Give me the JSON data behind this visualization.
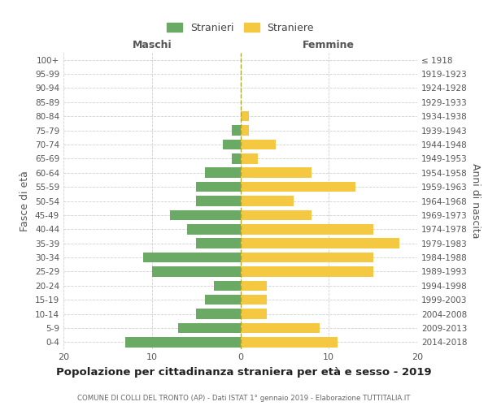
{
  "age_groups": [
    "0-4",
    "5-9",
    "10-14",
    "15-19",
    "20-24",
    "25-29",
    "30-34",
    "35-39",
    "40-44",
    "45-49",
    "50-54",
    "55-59",
    "60-64",
    "65-69",
    "70-74",
    "75-79",
    "80-84",
    "85-89",
    "90-94",
    "95-99",
    "100+"
  ],
  "birth_years": [
    "2014-2018",
    "2009-2013",
    "2004-2008",
    "1999-2003",
    "1994-1998",
    "1989-1993",
    "1984-1988",
    "1979-1983",
    "1974-1978",
    "1969-1973",
    "1964-1968",
    "1959-1963",
    "1954-1958",
    "1949-1953",
    "1944-1948",
    "1939-1943",
    "1934-1938",
    "1929-1933",
    "1924-1928",
    "1919-1923",
    "≤ 1918"
  ],
  "males": [
    13,
    7,
    5,
    4,
    3,
    10,
    11,
    5,
    6,
    8,
    5,
    5,
    4,
    1,
    2,
    1,
    0,
    0,
    0,
    0,
    0
  ],
  "females": [
    11,
    9,
    3,
    3,
    3,
    15,
    15,
    18,
    15,
    8,
    6,
    13,
    8,
    2,
    4,
    1,
    1,
    0,
    0,
    0,
    0
  ],
  "male_color": "#6aaa64",
  "female_color": "#f5c842",
  "title": "Popolazione per cittadinanza straniera per età e sesso - 2019",
  "subtitle": "COMUNE DI COLLI DEL TRONTO (AP) - Dati ISTAT 1° gennaio 2019 - Elaborazione TUTTITALIA.IT",
  "xlabel_left": "Maschi",
  "xlabel_right": "Femmine",
  "ylabel_left": "Fasce di età",
  "ylabel_right": "Anni di nascita",
  "legend_male": "Stranieri",
  "legend_female": "Straniere",
  "xlim": 20,
  "background_color": "#ffffff",
  "grid_color": "#cccccc"
}
